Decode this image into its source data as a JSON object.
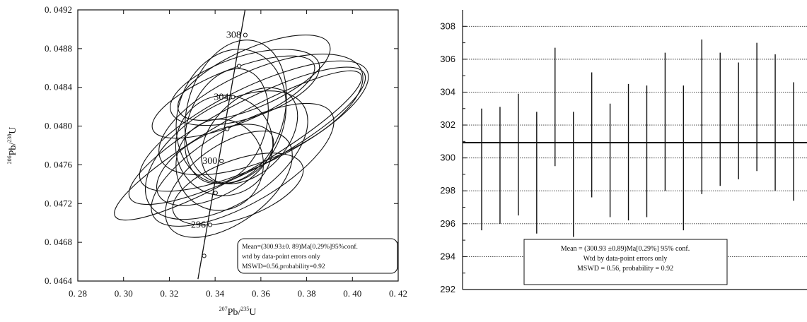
{
  "chart_data": [
    {
      "type": "scatter",
      "subtype": "concordia",
      "title": "",
      "xlabel": {
        "main": "Pb/",
        "mass_top": "207",
        "mass_bottom": "235",
        "tail": "U"
      },
      "ylabel": {
        "main": "Pb/",
        "mass_top": "206",
        "mass_bottom": "238",
        "tail": "U"
      },
      "xlim": [
        0.28,
        0.42
      ],
      "ylim": [
        0.0464,
        0.0492
      ],
      "x_ticks": [
        "0. 28",
        "0. 30",
        "0. 32",
        "0. 34",
        "0. 36",
        "0. 38",
        "0. 40",
        "0. 42"
      ],
      "y_ticks": [
        "0. 0464",
        "0. 0468",
        "0. 0472",
        "0. 0476",
        "0. 0480",
        "0. 0484",
        "0. 0488",
        "0. 0492"
      ],
      "concordia_curve": [
        [
          0.3325,
          0.04642
        ],
        [
          0.3542,
          0.04935
        ]
      ],
      "age_markers": [
        {
          "age": "296",
          "x": 0.3378,
          "y": 0.04698
        },
        {
          "age": "300",
          "x": 0.3428,
          "y": 0.04764
        },
        {
          "age": "304",
          "x": 0.3478,
          "y": 0.0483
        },
        {
          "age": "308",
          "x": 0.3532,
          "y": 0.04894
        }
      ],
      "intermediate_markers": [
        [
          0.3352,
          0.04666
        ],
        [
          0.3402,
          0.04731
        ],
        [
          0.3453,
          0.04797
        ],
        [
          0.3505,
          0.04862
        ]
      ],
      "ellipses": [
        {
          "cx": 0.35,
          "cy": 0.0478,
          "rx": 0.062,
          "ry": 0.00028,
          "angle": 30
        },
        {
          "cx": 0.354,
          "cy": 0.0479,
          "rx": 0.058,
          "ry": 0.00034,
          "angle": 28
        },
        {
          "cx": 0.357,
          "cy": 0.048,
          "rx": 0.055,
          "ry": 0.0004,
          "angle": 26
        },
        {
          "cx": 0.36,
          "cy": 0.04812,
          "rx": 0.048,
          "ry": 0.00046,
          "angle": 24
        },
        {
          "cx": 0.345,
          "cy": 0.0477,
          "rx": 0.04,
          "ry": 0.0005,
          "angle": 33
        },
        {
          "cx": 0.352,
          "cy": 0.0476,
          "rx": 0.045,
          "ry": 0.0004,
          "angle": 30
        },
        {
          "cx": 0.348,
          "cy": 0.0483,
          "rx": 0.038,
          "ry": 0.00028,
          "angle": 22
        },
        {
          "cx": 0.353,
          "cy": 0.0484,
          "rx": 0.034,
          "ry": 0.00032,
          "angle": 18
        },
        {
          "cx": 0.357,
          "cy": 0.0485,
          "rx": 0.036,
          "ry": 0.0003,
          "angle": 24
        },
        {
          "cx": 0.346,
          "cy": 0.0474,
          "rx": 0.032,
          "ry": 0.0004,
          "angle": 36
        },
        {
          "cx": 0.35,
          "cy": 0.04735,
          "rx": 0.03,
          "ry": 0.0003,
          "angle": 20
        },
        {
          "cx": 0.34,
          "cy": 0.0476,
          "rx": 0.028,
          "ry": 0.00032,
          "angle": 28
        },
        {
          "cx": 0.347,
          "cy": 0.0481,
          "rx": 0.03,
          "ry": 0.00055,
          "angle": 72
        },
        {
          "cx": 0.349,
          "cy": 0.04815,
          "rx": 0.032,
          "ry": 0.0005,
          "angle": 74
        },
        {
          "cx": 0.345,
          "cy": 0.048,
          "rx": 0.026,
          "ry": 0.0004,
          "angle": 70
        },
        {
          "cx": 0.344,
          "cy": 0.0478,
          "rx": 0.022,
          "ry": 0.0005,
          "angle": 78
        },
        {
          "cx": 0.342,
          "cy": 0.0476,
          "rx": 0.02,
          "ry": 0.00045,
          "angle": 80
        },
        {
          "cx": 0.355,
          "cy": 0.0479,
          "rx": 0.025,
          "ry": 0.00038,
          "angle": 45
        }
      ],
      "annotation": [
        "Mean=(300.93±0. 89)Ma[0.29%]95%conf.",
        "wtd by data-point errors only",
        "MSWD=0.56,probability=0.92"
      ]
    },
    {
      "type": "error_bar",
      "title": "",
      "ylim": [
        292,
        309
      ],
      "y_ticks": [
        "292",
        "294",
        "296",
        "298",
        "300",
        "302",
        "304",
        "306",
        "308"
      ],
      "mean": 300.93,
      "bars": [
        {
          "low": 295.6,
          "high": 303.0
        },
        {
          "low": 296.0,
          "high": 303.1
        },
        {
          "low": 296.5,
          "high": 303.9
        },
        {
          "low": 295.4,
          "high": 302.8
        },
        {
          "low": 299.5,
          "high": 306.7
        },
        {
          "low": 295.2,
          "high": 302.8
        },
        {
          "low": 297.6,
          "high": 305.2
        },
        {
          "low": 296.4,
          "high": 303.3
        },
        {
          "low": 296.2,
          "high": 304.5
        },
        {
          "low": 296.4,
          "high": 304.4
        },
        {
          "low": 298.0,
          "high": 306.4
        },
        {
          "low": 295.6,
          "high": 304.4
        },
        {
          "low": 297.8,
          "high": 307.2
        },
        {
          "low": 298.3,
          "high": 306.4
        },
        {
          "low": 298.7,
          "high": 305.8
        },
        {
          "low": 299.2,
          "high": 307.0
        },
        {
          "low": 298.0,
          "high": 306.3
        },
        {
          "low": 297.4,
          "high": 304.6
        }
      ],
      "annotation": [
        "Mean = (300.93 ±0.89)Ma[0.29%]  95% conf.",
        "Wtd by data-point errors only",
        "MSWD = 0.56, probability = 0.92"
      ]
    }
  ]
}
